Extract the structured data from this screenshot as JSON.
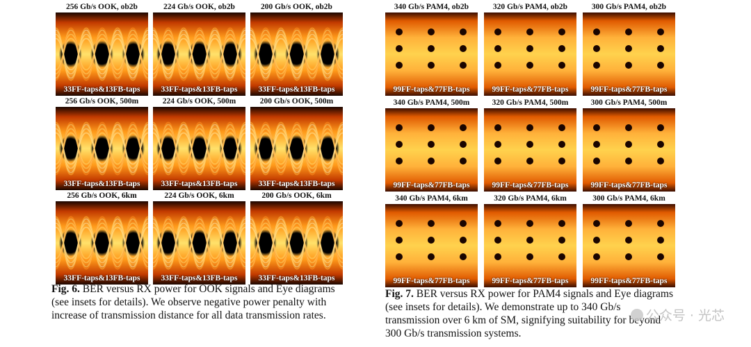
{
  "ook": {
    "rows": [
      {
        "titles": [
          "256 Gb/s OOK, ob2b",
          "224 Gb/s OOK, ob2b",
          "200 Gb/s OOK, ob2b"
        ]
      },
      {
        "titles": [
          "256 Gb/s OOK, 500m",
          "224 Gb/s OOK, 500m",
          "200 Gb/s OOK, 500m"
        ]
      },
      {
        "titles": [
          "256 Gb/s OOK, 6km",
          "224 Gb/s OOK, 6km",
          "200 Gb/s OOK, 6km"
        ]
      }
    ],
    "inset": "33FF-taps&13FB-taps",
    "fig_label": "Fig. 6.",
    "fig_text": "BER versus RX power for OOK signals and Eye diagrams (see insets for details). We observe negative power penalty with increase of transmission distance for all data transmission rates."
  },
  "pam": {
    "rows": [
      {
        "titles": [
          "340 Gb/s PAM4, ob2b",
          "320 Gb/s PAM4, ob2b",
          "300 Gb/s PAM4, ob2b"
        ]
      },
      {
        "titles": [
          "340 Gb/s PAM4, 500m",
          "320 Gb/s PAM4, 500m",
          "300 Gb/s PAM4, 500m"
        ]
      },
      {
        "titles": [
          "340 Gb/s PAM4, 6km",
          "320 Gb/s PAM4, 6km",
          "300 Gb/s PAM4, 6km"
        ]
      }
    ],
    "inset": "99FF-taps&77FB-taps",
    "fig_label": "Fig. 7.",
    "fig_text": "BER versus RX power for PAM4 signals and Eye diagrams (see insets for details). We demonstrate up to 340 Gb/s transmission over 6 km of SM, signifying suitability for beyond 300 Gb/s transmission systems."
  },
  "watermark": "公众号 · 光芯"
}
